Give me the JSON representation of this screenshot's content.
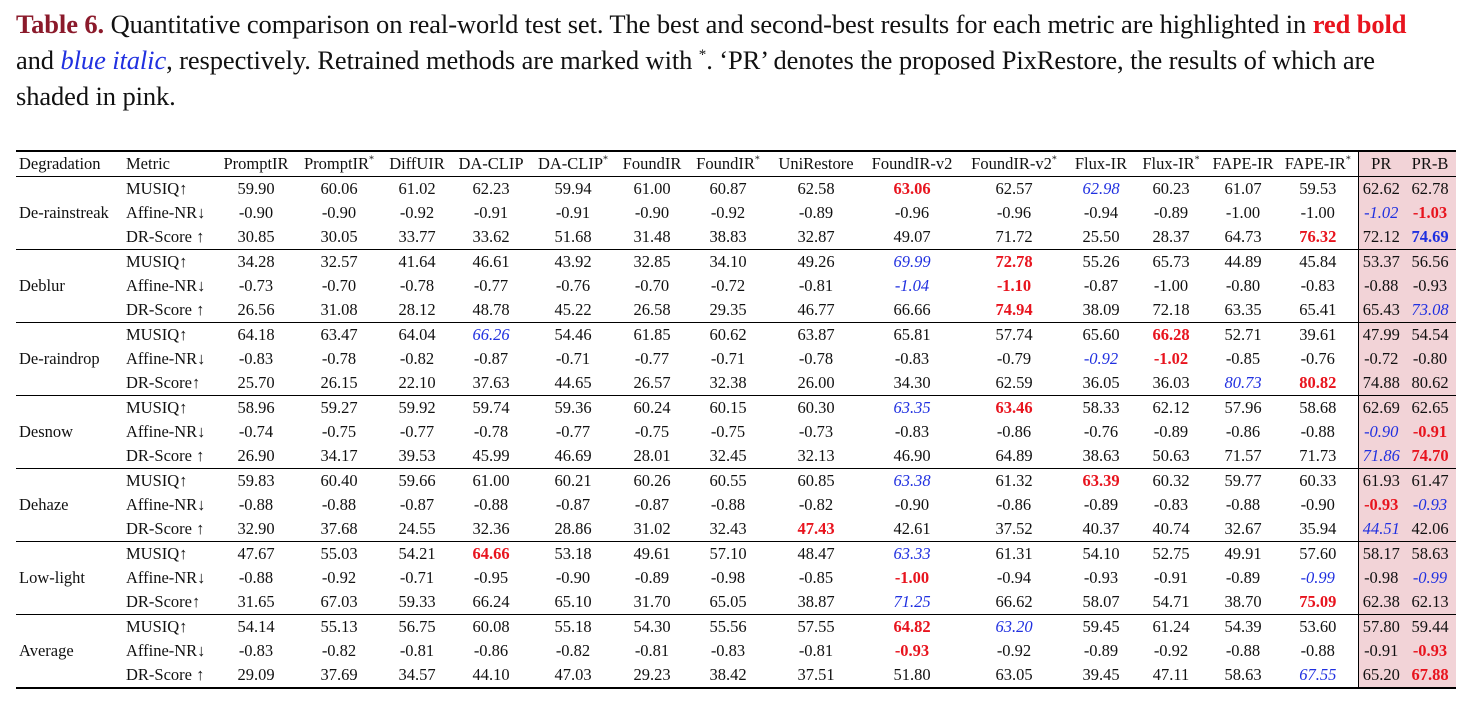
{
  "caption": {
    "label": "Table 6.",
    "part1": " Quantitative comparison on real-world test set. The best and second-best results for each metric are highlighted in ",
    "red_text": "red bold",
    "part2": " and ",
    "blue_text": "blue italic",
    "part3": ", respectively. Retrained methods are marked with ",
    "star": "*",
    "part4": ". ‘PR’ denotes the proposed PixRestore, the results of which are shaded in pink."
  },
  "colors": {
    "best": "#e8141e",
    "second_best": "#2030e0",
    "pr_shade": "#f2d3d7",
    "label": "#8b1a2b"
  },
  "header": {
    "degradation": "Degradation",
    "metric": "Metric",
    "methods": [
      {
        "name": "PromptIR",
        "star": ""
      },
      {
        "name": "PromptIR",
        "star": "*"
      },
      {
        "name": "DiffUIR",
        "star": ""
      },
      {
        "name": "DA-CLIP",
        "star": ""
      },
      {
        "name": "DA-CLIP",
        "star": "*"
      },
      {
        "name": "FoundIR",
        "star": ""
      },
      {
        "name": "FoundIR",
        "star": "*"
      },
      {
        "name": "UniRestore",
        "star": ""
      },
      {
        "name": "FoundIR-v2",
        "star": ""
      },
      {
        "name": "FoundIR-v2",
        "star": "*"
      },
      {
        "name": "Flux-IR",
        "star": ""
      },
      {
        "name": "Flux-IR",
        "star": "*"
      },
      {
        "name": "FAPE-IR",
        "star": ""
      },
      {
        "name": "FAPE-IR",
        "star": "*"
      },
      {
        "name": "PR",
        "star": ""
      },
      {
        "name": "PR-B",
        "star": ""
      }
    ]
  },
  "groups": [
    {
      "name": "De-rainstreak",
      "rows": [
        {
          "metric": "MUSIQ↑",
          "values": [
            "59.90",
            "60.06",
            "61.02",
            "62.23",
            "59.94",
            "61.00",
            "60.87",
            "62.58",
            "63.06",
            "62.57",
            "62.98",
            "60.23",
            "61.07",
            "59.53",
            "62.62",
            "62.78"
          ],
          "best": 8,
          "second": 10
        },
        {
          "metric": "Affine-NR↓",
          "values": [
            "-0.90",
            "-0.90",
            "-0.92",
            "-0.91",
            "-0.91",
            "-0.90",
            "-0.92",
            "-0.89",
            "-0.96",
            "-0.96",
            "-0.94",
            "-0.89",
            "-1.00",
            "-1.00",
            "-1.02",
            "-1.03"
          ],
          "best": 15,
          "second": 14
        },
        {
          "metric": "DR-Score ↑",
          "values": [
            "30.85",
            "30.05",
            "33.77",
            "33.62",
            "51.68",
            "31.48",
            "38.83",
            "32.87",
            "49.07",
            "71.72",
            "25.50",
            "28.37",
            "64.73",
            "76.32",
            "72.12",
            "74.69"
          ],
          "best": 13,
          "second": -1,
          "bold_blue": 15
        }
      ]
    },
    {
      "name": "Deblur",
      "rows": [
        {
          "metric": "MUSIQ↑",
          "values": [
            "34.28",
            "32.57",
            "41.64",
            "46.61",
            "43.92",
            "32.85",
            "34.10",
            "49.26",
            "69.99",
            "72.78",
            "55.26",
            "65.73",
            "44.89",
            "45.84",
            "53.37",
            "56.56"
          ],
          "best": 9,
          "second": 8
        },
        {
          "metric": "Affine-NR↓",
          "values": [
            "-0.73",
            "-0.70",
            "-0.78",
            "-0.77",
            "-0.76",
            "-0.70",
            "-0.72",
            "-0.81",
            "-1.04",
            "-1.10",
            "-0.87",
            "-1.00",
            "-0.80",
            "-0.83",
            "-0.88",
            "-0.93"
          ],
          "best": 9,
          "second": 8
        },
        {
          "metric": "DR-Score ↑",
          "values": [
            "26.56",
            "31.08",
            "28.12",
            "48.78",
            "45.22",
            "26.58",
            "29.35",
            "46.77",
            "66.66",
            "74.94",
            "38.09",
            "72.18",
            "63.35",
            "65.41",
            "65.43",
            "73.08"
          ],
          "best": 9,
          "second": 15
        }
      ]
    },
    {
      "name": "De-raindrop",
      "rows": [
        {
          "metric": "MUSIQ↑",
          "values": [
            "64.18",
            "63.47",
            "64.04",
            "66.26",
            "54.46",
            "61.85",
            "60.62",
            "63.87",
            "65.81",
            "57.74",
            "65.60",
            "66.28",
            "52.71",
            "39.61",
            "47.99",
            "54.54"
          ],
          "best": 11,
          "second": 3
        },
        {
          "metric": "Affine-NR↓",
          "values": [
            "-0.83",
            "-0.78",
            "-0.82",
            "-0.87",
            "-0.71",
            "-0.77",
            "-0.71",
            "-0.78",
            "-0.83",
            "-0.79",
            "-0.92",
            "-1.02",
            "-0.85",
            "-0.76",
            "-0.72",
            "-0.80"
          ],
          "best": 11,
          "second": 10
        },
        {
          "metric": "DR-Score↑",
          "values": [
            "25.70",
            "26.15",
            "22.10",
            "37.63",
            "44.65",
            "26.57",
            "32.38",
            "26.00",
            "34.30",
            "62.59",
            "36.05",
            "36.03",
            "80.73",
            "80.82",
            "74.88",
            "80.62"
          ],
          "best": 13,
          "second": 12
        }
      ]
    },
    {
      "name": "Desnow",
      "rows": [
        {
          "metric": "MUSIQ↑",
          "values": [
            "58.96",
            "59.27",
            "59.92",
            "59.74",
            "59.36",
            "60.24",
            "60.15",
            "60.30",
            "63.35",
            "63.46",
            "58.33",
            "62.12",
            "57.96",
            "58.68",
            "62.69",
            "62.65"
          ],
          "best": 9,
          "second": 8
        },
        {
          "metric": "Affine-NR↓",
          "values": [
            "-0.74",
            "-0.75",
            "-0.77",
            "-0.78",
            "-0.77",
            "-0.75",
            "-0.75",
            "-0.73",
            "-0.83",
            "-0.86",
            "-0.76",
            "-0.89",
            "-0.86",
            "-0.88",
            "-0.90",
            "-0.91"
          ],
          "best": 15,
          "second": 14
        },
        {
          "metric": "DR-Score ↑",
          "values": [
            "26.90",
            "34.17",
            "39.53",
            "45.99",
            "46.69",
            "28.01",
            "32.45",
            "32.13",
            "46.90",
            "64.89",
            "38.63",
            "50.63",
            "71.57",
            "71.73",
            "71.86",
            "74.70"
          ],
          "best": 15,
          "second": 14
        }
      ]
    },
    {
      "name": "Dehaze",
      "rows": [
        {
          "metric": "MUSIQ↑",
          "values": [
            "59.83",
            "60.40",
            "59.66",
            "61.00",
            "60.21",
            "60.26",
            "60.55",
            "60.85",
            "63.38",
            "61.32",
            "63.39",
            "60.32",
            "59.77",
            "60.33",
            "61.93",
            "61.47"
          ],
          "best": 10,
          "second": 8
        },
        {
          "metric": "Affine-NR↓",
          "values": [
            "-0.88",
            "-0.88",
            "-0.87",
            "-0.88",
            "-0.87",
            "-0.87",
            "-0.88",
            "-0.82",
            "-0.90",
            "-0.86",
            "-0.89",
            "-0.83",
            "-0.88",
            "-0.90",
            "-0.93",
            "-0.93"
          ],
          "best": 14,
          "second": 15
        },
        {
          "metric": "DR-Score ↑",
          "values": [
            "32.90",
            "37.68",
            "24.55",
            "32.36",
            "28.86",
            "31.02",
            "32.43",
            "47.43",
            "42.61",
            "37.52",
            "40.37",
            "40.74",
            "32.67",
            "35.94",
            "44.51",
            "42.06"
          ],
          "best": 7,
          "second": 14
        }
      ]
    },
    {
      "name": "Low-light",
      "rows": [
        {
          "metric": "MUSIQ↑",
          "values": [
            "47.67",
            "55.03",
            "54.21",
            "64.66",
            "53.18",
            "49.61",
            "57.10",
            "48.47",
            "63.33",
            "61.31",
            "54.10",
            "52.75",
            "49.91",
            "57.60",
            "58.17",
            "58.63"
          ],
          "best": 3,
          "second": 8
        },
        {
          "metric": "Affine-NR↓",
          "values": [
            "-0.88",
            "-0.92",
            "-0.71",
            "-0.95",
            "-0.90",
            "-0.89",
            "-0.98",
            "-0.85",
            "-1.00",
            "-0.94",
            "-0.93",
            "-0.91",
            "-0.89",
            "-0.99",
            "-0.98",
            "-0.99"
          ],
          "best": 8,
          "second": 13,
          "second2": 15
        },
        {
          "metric": "DR-Score↑",
          "values": [
            "31.65",
            "67.03",
            "59.33",
            "66.24",
            "65.10",
            "31.70",
            "65.05",
            "38.87",
            "71.25",
            "66.62",
            "58.07",
            "54.71",
            "38.70",
            "75.09",
            "62.38",
            "62.13"
          ],
          "best": 13,
          "second": 8
        }
      ]
    },
    {
      "name": "Average",
      "rows": [
        {
          "metric": "MUSIQ↑",
          "values": [
            "54.14",
            "55.13",
            "56.75",
            "60.08",
            "55.18",
            "54.30",
            "55.56",
            "57.55",
            "64.82",
            "63.20",
            "59.45",
            "61.24",
            "54.39",
            "53.60",
            "57.80",
            "59.44"
          ],
          "best": 8,
          "second": 9
        },
        {
          "metric": "Affine-NR↓",
          "values": [
            "-0.83",
            "-0.82",
            "-0.81",
            "-0.86",
            "-0.82",
            "-0.81",
            "-0.83",
            "-0.81",
            "-0.93",
            "-0.92",
            "-0.89",
            "-0.92",
            "-0.88",
            "-0.88",
            "-0.91",
            "-0.93"
          ],
          "best": 8,
          "best2": 15,
          "second": -1
        },
        {
          "metric": "DR-Score ↑",
          "values": [
            "29.09",
            "37.69",
            "34.57",
            "44.10",
            "47.03",
            "29.23",
            "38.42",
            "37.51",
            "51.80",
            "63.05",
            "39.45",
            "47.11",
            "58.63",
            "67.55",
            "65.20",
            "67.88"
          ],
          "best": 15,
          "second": 13
        }
      ]
    }
  ]
}
